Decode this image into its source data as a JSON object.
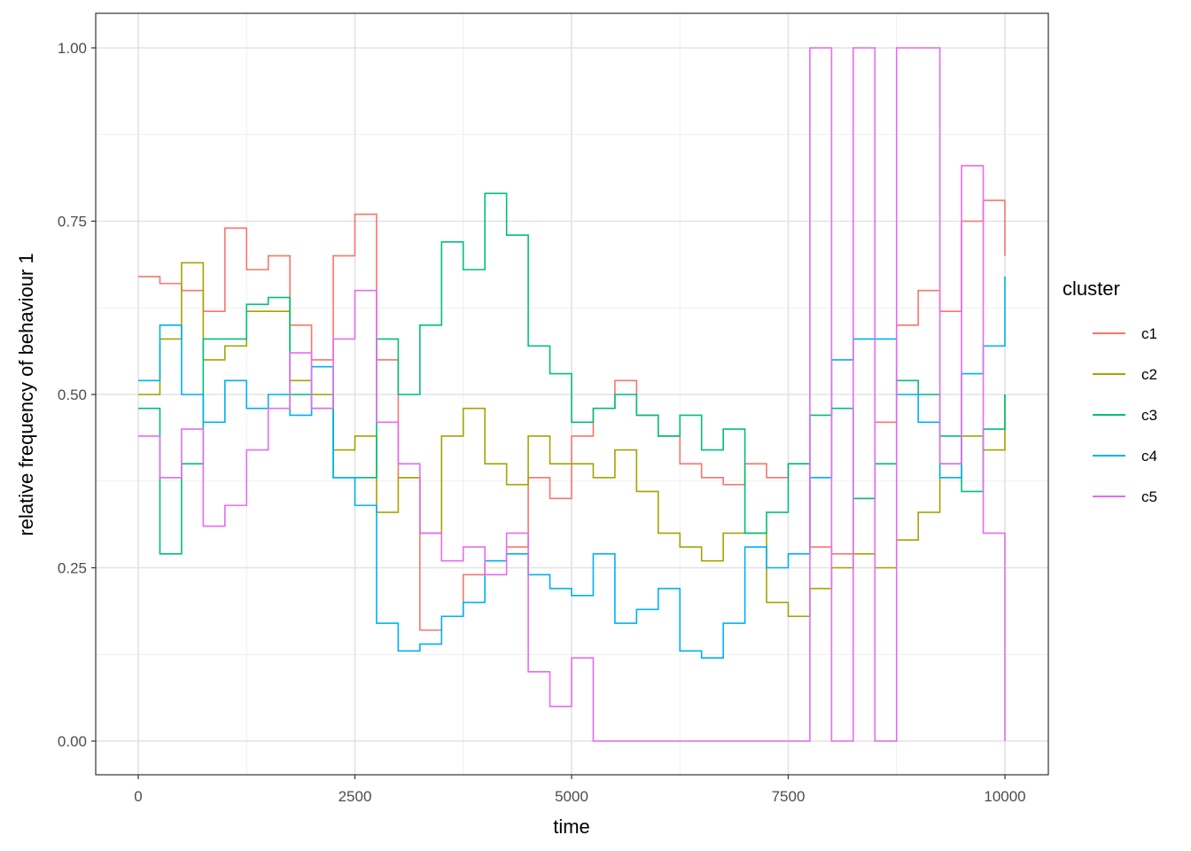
{
  "chart_data": {
    "type": "line",
    "title": "",
    "xlabel": "time",
    "ylabel": "relative frequency of behaviour 1",
    "xlim": [
      0,
      10000
    ],
    "ylim": [
      0,
      1
    ],
    "x_ticks": [
      "0",
      "2500",
      "5000",
      "7500",
      "10000"
    ],
    "y_ticks": [
      "0.00",
      "0.25",
      "0.50",
      "0.75",
      "1.00"
    ],
    "grid": true,
    "legend_position": "right",
    "legend_title": "cluster",
    "x": [
      0,
      250,
      500,
      750,
      1000,
      1250,
      1500,
      1750,
      2000,
      2250,
      2500,
      2750,
      3000,
      3250,
      3500,
      3750,
      4000,
      4250,
      4500,
      4750,
      5000,
      5250,
      5500,
      5750,
      6000,
      6250,
      6500,
      6750,
      7000,
      7250,
      7500,
      7750,
      8000,
      8250,
      8500,
      8750,
      9000,
      9250,
      9500,
      9750,
      10000
    ],
    "series": [
      {
        "name": "c1",
        "color": "#F8766D",
        "values": [
          0.67,
          0.66,
          0.65,
          0.62,
          0.74,
          0.68,
          0.7,
          0.6,
          0.55,
          0.7,
          0.76,
          0.55,
          0.38,
          0.16,
          0.18,
          0.24,
          0.26,
          0.28,
          0.38,
          0.35,
          0.44,
          0.48,
          0.52,
          0.47,
          0.44,
          0.4,
          0.38,
          0.37,
          0.4,
          0.38,
          0.4,
          0.28,
          0.27,
          0.35,
          0.46,
          0.6,
          0.65,
          0.62,
          0.75,
          0.78,
          0.7
        ]
      },
      {
        "name": "c2",
        "color": "#A3A500",
        "values": [
          0.5,
          0.58,
          0.69,
          0.55,
          0.57,
          0.62,
          0.62,
          0.52,
          0.5,
          0.42,
          0.44,
          0.33,
          0.38,
          0.3,
          0.44,
          0.48,
          0.4,
          0.37,
          0.44,
          0.4,
          0.4,
          0.38,
          0.42,
          0.36,
          0.3,
          0.28,
          0.26,
          0.3,
          0.3,
          0.2,
          0.18,
          0.22,
          0.25,
          0.27,
          0.25,
          0.29,
          0.33,
          0.4,
          0.44,
          0.42,
          0.5
        ]
      },
      {
        "name": "c3",
        "color": "#00BF7D",
        "values": [
          0.48,
          0.27,
          0.4,
          0.58,
          0.58,
          0.63,
          0.64,
          0.5,
          0.48,
          0.38,
          0.38,
          0.58,
          0.5,
          0.6,
          0.72,
          0.68,
          0.79,
          0.73,
          0.57,
          0.53,
          0.46,
          0.48,
          0.5,
          0.47,
          0.44,
          0.47,
          0.42,
          0.45,
          0.3,
          0.33,
          0.4,
          0.47,
          0.48,
          0.35,
          0.4,
          0.52,
          0.5,
          0.44,
          0.36,
          0.45,
          0.5
        ]
      },
      {
        "name": "c4",
        "color": "#00B0F6",
        "values": [
          0.52,
          0.6,
          0.5,
          0.46,
          0.52,
          0.48,
          0.5,
          0.47,
          0.54,
          0.38,
          0.34,
          0.17,
          0.13,
          0.14,
          0.18,
          0.2,
          0.26,
          0.27,
          0.24,
          0.22,
          0.21,
          0.27,
          0.17,
          0.19,
          0.22,
          0.13,
          0.12,
          0.17,
          0.28,
          0.25,
          0.27,
          0.38,
          0.55,
          0.58,
          0.58,
          0.5,
          0.46,
          0.38,
          0.53,
          0.57,
          0.67
        ]
      },
      {
        "name": "c5",
        "color": "#E76BF3",
        "values": [
          0.44,
          0.38,
          0.45,
          0.31,
          0.34,
          0.42,
          0.48,
          0.56,
          0.48,
          0.58,
          0.65,
          0.46,
          0.4,
          0.3,
          0.26,
          0.28,
          0.24,
          0.3,
          0.1,
          0.05,
          0.12,
          0.0,
          0.0,
          0.0,
          0.0,
          0.0,
          0.0,
          0.0,
          0.0,
          0.0,
          0.0,
          1.0,
          0.0,
          1.0,
          0.0,
          1.0,
          1.0,
          0.4,
          0.83,
          0.3,
          0.0
        ]
      }
    ]
  },
  "legend": {
    "title": "cluster",
    "items": [
      {
        "label": "c1",
        "color": "#F8766D"
      },
      {
        "label": "c2",
        "color": "#A3A500"
      },
      {
        "label": "c3",
        "color": "#00BF7D"
      },
      {
        "label": "c4",
        "color": "#00B0F6"
      },
      {
        "label": "c5",
        "color": "#E76BF3"
      }
    ]
  },
  "axes": {
    "x_title": "time",
    "y_title": "relative frequency of behaviour 1"
  }
}
